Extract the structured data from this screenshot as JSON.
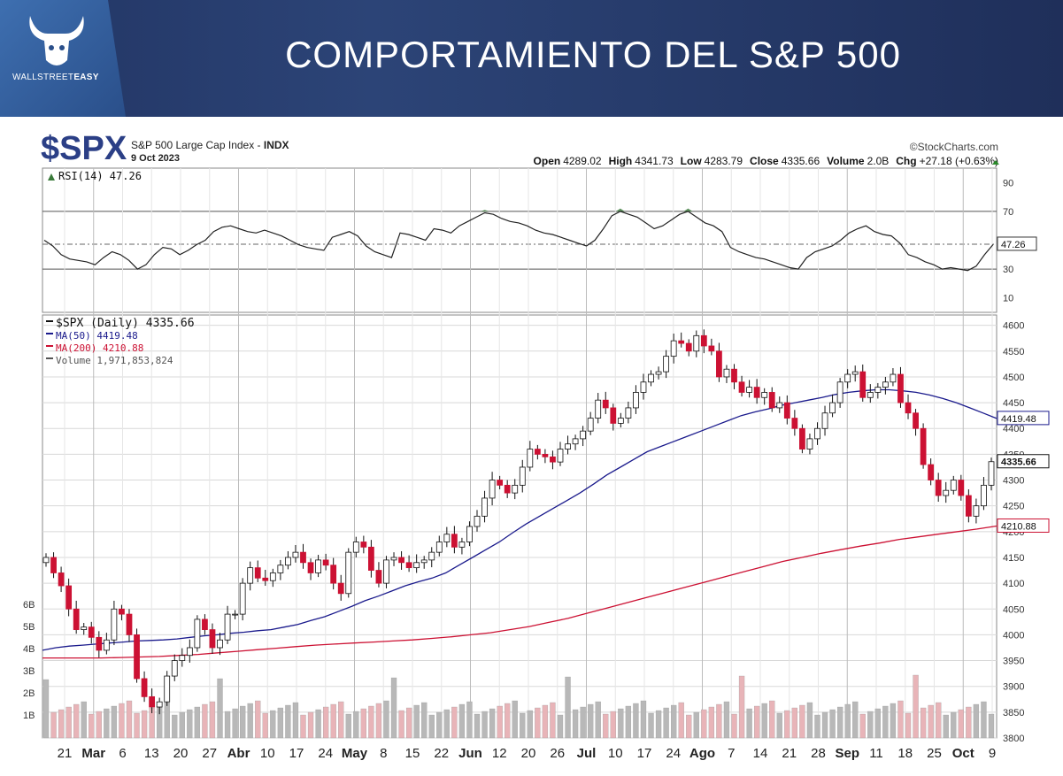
{
  "banner": {
    "title": "COMPORTAMIENTO DEL S&P 500",
    "logo_text_a": "WALLSTREET",
    "logo_text_b": "EASY"
  },
  "header": {
    "symbol": "$SPX",
    "name": "S&P 500 Large Cap Index - ",
    "exchange": "INDX",
    "date": "9 Oct 2023",
    "watermark": "©StockCharts.com",
    "ohlc": [
      {
        "label": "Open",
        "value": "4289.02"
      },
      {
        "label": "High",
        "value": "4341.73"
      },
      {
        "label": "Low",
        "value": "4283.79"
      },
      {
        "label": "Close",
        "value": "4335.66"
      },
      {
        "label": "Volume",
        "value": "2.0B"
      },
      {
        "label": "Chg",
        "value": "+27.18 (+0.63%)"
      }
    ]
  },
  "colors": {
    "up": "#ffffff",
    "down": "#cc1133",
    "ma50": "#1a1a8c",
    "ma200": "#cc1133",
    "rsi": "#222222",
    "overbought_fill": "#3a7a3a",
    "vol_down": "#e8b4b8",
    "vol_up": "#b8b8b8",
    "grid": "#d8d8d8"
  },
  "chart_data": [
    {
      "type": "line",
      "title": "RSI(14) 47.26",
      "ylim": [
        0,
        100
      ],
      "yticks": [
        "90",
        "70",
        "50",
        "30",
        "10"
      ],
      "current_label": "47.26",
      "current": 47.26,
      "values": [
        50,
        46,
        40,
        37,
        36,
        35,
        33,
        38,
        42,
        40,
        36,
        30,
        33,
        40,
        45,
        44,
        40,
        43,
        47,
        50,
        56,
        59,
        60,
        58,
        56,
        55,
        57,
        55,
        53,
        50,
        47,
        45,
        44,
        43,
        52,
        54,
        56,
        53,
        46,
        42,
        40,
        38,
        55,
        54,
        52,
        50,
        58,
        57,
        55,
        60,
        63,
        66,
        69,
        68,
        65,
        63,
        62,
        60,
        57,
        55,
        54,
        52,
        50,
        48,
        46,
        50,
        58,
        67,
        70,
        68,
        66,
        62,
        58,
        60,
        64,
        68,
        70,
        66,
        62,
        60,
        56,
        45,
        42,
        40,
        38,
        37,
        35,
        33,
        31,
        30,
        38,
        42,
        44,
        46,
        50,
        55,
        58,
        60,
        56,
        54,
        53,
        48,
        40,
        38,
        35,
        33,
        30,
        31,
        30,
        29,
        32,
        40,
        47
      ]
    },
    {
      "type": "candlestick",
      "title": "$SPX (Daily) 4335.66",
      "ylim": [
        3800,
        4620
      ],
      "yticks": [
        "4600",
        "4550",
        "4500",
        "4450",
        "4400",
        "4350",
        "4300",
        "4250",
        "4200",
        "4150",
        "4100",
        "4050",
        "4000",
        "3950",
        "3900",
        "3850",
        "3800"
      ],
      "close_label": "4335.66",
      "ma50_label": "4419.48",
      "ma200_label": "4210.88",
      "legend": [
        {
          "key": "price",
          "text": "$SPX (Daily) 4335.66"
        },
        {
          "key": "ma50",
          "text": "MA(50) 4419.48"
        },
        {
          "key": "ma200",
          "text": "MA(200) 4210.88"
        },
        {
          "key": "volume",
          "text": "Volume 1,971,853,824"
        }
      ],
      "x": [
        "21",
        "Mar",
        "6",
        "13",
        "20",
        "27",
        "Abr",
        "10",
        "17",
        "24",
        "May",
        "8",
        "15",
        "22",
        "Jun",
        "12",
        "20",
        "26",
        "Jul",
        "10",
        "17",
        "24",
        "Ago",
        "7",
        "14",
        "21",
        "28",
        "Sep",
        "11",
        "18",
        "25",
        "Oct",
        "9"
      ],
      "closes": [
        4150,
        4120,
        4095,
        4050,
        4010,
        4015,
        3995,
        3970,
        3990,
        4050,
        4040,
        4000,
        3915,
        3880,
        3860,
        3870,
        3920,
        3950,
        3960,
        3975,
        4030,
        4010,
        3975,
        3990,
        4040,
        4040,
        4100,
        4130,
        4110,
        4105,
        4120,
        4135,
        4150,
        4160,
        4140,
        4120,
        4145,
        4135,
        4100,
        4080,
        4160,
        4180,
        4170,
        4125,
        4100,
        4145,
        4150,
        4140,
        4130,
        4140,
        4145,
        4160,
        4180,
        4195,
        4170,
        4180,
        4210,
        4230,
        4265,
        4300,
        4290,
        4275,
        4290,
        4325,
        4360,
        4350,
        4345,
        4335,
        4360,
        4370,
        4380,
        4395,
        4420,
        4455,
        4440,
        4410,
        4420,
        4440,
        4470,
        4490,
        4505,
        4510,
        4540,
        4570,
        4565,
        4550,
        4580,
        4560,
        4550,
        4500,
        4515,
        4490,
        4470,
        4480,
        4460,
        4470,
        4440,
        4450,
        4420,
        4400,
        4360,
        4380,
        4400,
        4430,
        4450,
        4490,
        4505,
        4510,
        4460,
        4470,
        4480,
        4490,
        4505,
        4450,
        4430,
        4400,
        4330,
        4300,
        4270,
        4280,
        4300,
        4270,
        4230,
        4250,
        4290,
        4335.66
      ],
      "ma50": [
        3970,
        3975,
        3978,
        3980,
        3982,
        3984,
        3986,
        3988,
        3989,
        3990,
        3992,
        3995,
        3998,
        4000,
        4003,
        4005,
        4008,
        4010,
        4015,
        4020,
        4028,
        4035,
        4045,
        4055,
        4066,
        4075,
        4085,
        4095,
        4103,
        4110,
        4120,
        4135,
        4150,
        4165,
        4180,
        4198,
        4215,
        4230,
        4245,
        4260,
        4275,
        4292,
        4310,
        4325,
        4340,
        4355,
        4365,
        4375,
        4385,
        4395,
        4405,
        4415,
        4425,
        4432,
        4438,
        4445,
        4450,
        4455,
        4460,
        4466,
        4470,
        4473,
        4475,
        4475,
        4473,
        4470,
        4465,
        4458,
        4450,
        4440,
        4430,
        4419.48
      ],
      "ma200": [
        3955,
        3955,
        3955,
        3955,
        3956,
        3957,
        3958,
        3960,
        3962,
        3965,
        3968,
        3971,
        3974,
        3977,
        3980,
        3982,
        3984,
        3986,
        3988,
        3990,
        3993,
        3996,
        4000,
        4004,
        4010,
        4016,
        4024,
        4032,
        4042,
        4052,
        4062,
        4072,
        4082,
        4092,
        4102,
        4112,
        4122,
        4132,
        4142,
        4150,
        4158,
        4165,
        4172,
        4178,
        4185,
        4190,
        4195,
        4200,
        4205,
        4210.88
      ]
    }
  ]
}
